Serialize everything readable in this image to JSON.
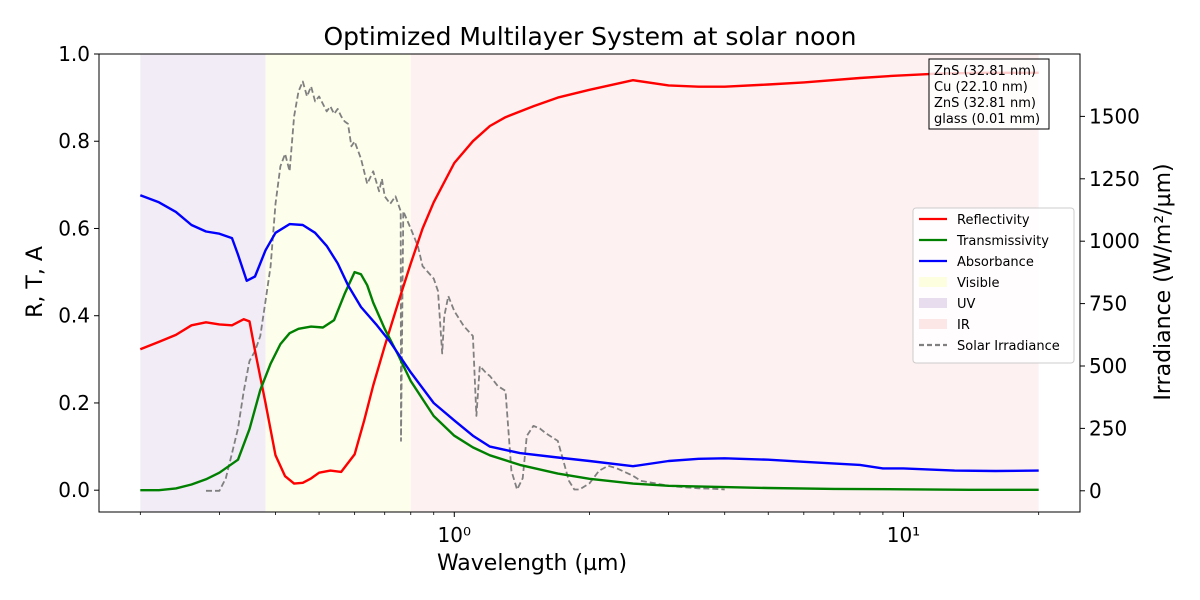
{
  "chart_data": {
    "type": "line",
    "title": "Optimized Multilayer System at solar noon",
    "xlabel": "Wavelength (µm)",
    "ylabel": "R, T, A",
    "y2label": "Irradiance (W/m²/µm)",
    "xscale": "log",
    "xlim": [
      0.2,
      20
    ],
    "ylim": [
      -0.05,
      1.0
    ],
    "y2lim": [
      -85,
      1750
    ],
    "x_ticks": [
      {
        "value": 1,
        "label": "10⁰"
      },
      {
        "value": 10,
        "label": "10¹"
      }
    ],
    "y_ticks": [
      {
        "value": 0.0,
        "label": "0.0"
      },
      {
        "value": 0.2,
        "label": "0.2"
      },
      {
        "value": 0.4,
        "label": "0.4"
      },
      {
        "value": 0.6,
        "label": "0.6"
      },
      {
        "value": 0.8,
        "label": "0.8"
      },
      {
        "value": 1.0,
        "label": "1.0"
      }
    ],
    "y2_ticks": [
      {
        "value": 0,
        "label": "0"
      },
      {
        "value": 250,
        "label": "250"
      },
      {
        "value": 500,
        "label": "500"
      },
      {
        "value": 750,
        "label": "750"
      },
      {
        "value": 1000,
        "label": "1000"
      },
      {
        "value": 1250,
        "label": "1250"
      },
      {
        "value": 1500,
        "label": "1500"
      }
    ],
    "regions": [
      {
        "name": "UV",
        "from": 0.2,
        "to": 0.38,
        "color": "#e8dcef"
      },
      {
        "name": "Visible",
        "from": 0.38,
        "to": 0.8,
        "color": "#fdfddf"
      },
      {
        "name": "IR",
        "from": 0.8,
        "to": 20,
        "color": "#fde6e6"
      }
    ],
    "series": [
      {
        "name": "Reflectivity",
        "color": "#ff0000",
        "axis": "left",
        "x": [
          0.2,
          0.22,
          0.24,
          0.26,
          0.28,
          0.3,
          0.32,
          0.34,
          0.35,
          0.36,
          0.38,
          0.4,
          0.42,
          0.44,
          0.46,
          0.48,
          0.5,
          0.53,
          0.56,
          0.6,
          0.63,
          0.66,
          0.7,
          0.75,
          0.8,
          0.85,
          0.9,
          1.0,
          1.1,
          1.2,
          1.3,
          1.5,
          1.7,
          2.0,
          2.5,
          3.0,
          3.5,
          4.0,
          5.0,
          6.0,
          8.0,
          9.5,
          12.0,
          15.0,
          20.0
        ],
        "y": [
          0.323,
          0.34,
          0.356,
          0.378,
          0.385,
          0.38,
          0.378,
          0.392,
          0.387,
          0.32,
          0.2,
          0.08,
          0.032,
          0.015,
          0.017,
          0.027,
          0.04,
          0.045,
          0.042,
          0.082,
          0.16,
          0.24,
          0.33,
          0.43,
          0.52,
          0.6,
          0.66,
          0.75,
          0.8,
          0.835,
          0.855,
          0.88,
          0.9,
          0.918,
          0.94,
          0.928,
          0.925,
          0.925,
          0.93,
          0.935,
          0.945,
          0.95,
          0.955,
          0.957,
          0.957
        ]
      },
      {
        "name": "Transmissivity",
        "color": "#008000",
        "axis": "left",
        "x": [
          0.2,
          0.22,
          0.24,
          0.26,
          0.28,
          0.3,
          0.33,
          0.35,
          0.37,
          0.39,
          0.41,
          0.43,
          0.45,
          0.48,
          0.51,
          0.54,
          0.57,
          0.6,
          0.62,
          0.64,
          0.66,
          0.7,
          0.75,
          0.8,
          0.9,
          1.0,
          1.1,
          1.2,
          1.4,
          1.7,
          2.0,
          2.5,
          3.0,
          4.0,
          5.0,
          7.0,
          10.0,
          14.0,
          20.0
        ],
        "y": [
          0.0,
          0.0,
          0.004,
          0.013,
          0.025,
          0.04,
          0.07,
          0.14,
          0.23,
          0.29,
          0.335,
          0.36,
          0.37,
          0.375,
          0.373,
          0.39,
          0.45,
          0.5,
          0.495,
          0.47,
          0.43,
          0.37,
          0.31,
          0.25,
          0.17,
          0.125,
          0.098,
          0.08,
          0.058,
          0.038,
          0.026,
          0.015,
          0.01,
          0.007,
          0.005,
          0.003,
          0.002,
          0.001,
          0.001
        ]
      },
      {
        "name": "Absorbance",
        "color": "#0000ff",
        "axis": "left",
        "x": [
          0.2,
          0.22,
          0.24,
          0.26,
          0.28,
          0.3,
          0.32,
          0.33,
          0.345,
          0.36,
          0.38,
          0.4,
          0.43,
          0.46,
          0.49,
          0.52,
          0.55,
          0.58,
          0.62,
          0.67,
          0.72,
          0.8,
          0.9,
          1.0,
          1.1,
          1.2,
          1.4,
          1.7,
          2.0,
          2.5,
          3.0,
          3.5,
          4.0,
          5.0,
          6.0,
          8.0,
          9.0,
          10.0,
          13.0,
          16.0,
          20.0
        ],
        "y": [
          0.676,
          0.66,
          0.638,
          0.608,
          0.593,
          0.588,
          0.578,
          0.54,
          0.48,
          0.49,
          0.55,
          0.59,
          0.61,
          0.608,
          0.59,
          0.56,
          0.52,
          0.47,
          0.42,
          0.38,
          0.34,
          0.27,
          0.2,
          0.16,
          0.125,
          0.1,
          0.085,
          0.075,
          0.067,
          0.055,
          0.067,
          0.072,
          0.073,
          0.07,
          0.065,
          0.058,
          0.05,
          0.05,
          0.045,
          0.044,
          0.045
        ]
      },
      {
        "name": "Solar Irradiance",
        "color": "#808080",
        "axis": "right",
        "dashed": true,
        "x": [
          0.28,
          0.29,
          0.3,
          0.31,
          0.32,
          0.33,
          0.34,
          0.35,
          0.36,
          0.37,
          0.38,
          0.39,
          0.4,
          0.41,
          0.42,
          0.43,
          0.44,
          0.45,
          0.46,
          0.47,
          0.48,
          0.49,
          0.5,
          0.51,
          0.52,
          0.53,
          0.54,
          0.55,
          0.56,
          0.57,
          0.58,
          0.59,
          0.6,
          0.62,
          0.64,
          0.66,
          0.68,
          0.69,
          0.7,
          0.72,
          0.74,
          0.76,
          0.761,
          0.77,
          0.8,
          0.83,
          0.85,
          0.88,
          0.9,
          0.92,
          0.94,
          0.95,
          0.97,
          1.0,
          1.05,
          1.1,
          1.12,
          1.14,
          1.18,
          1.2,
          1.25,
          1.3,
          1.34,
          1.38,
          1.42,
          1.45,
          1.5,
          1.55,
          1.6,
          1.7,
          1.8,
          1.85,
          1.9,
          2.0,
          2.1,
          2.2,
          2.3,
          2.4,
          2.5,
          2.6,
          2.8,
          3.0,
          3.2,
          3.5,
          3.8,
          4.0
        ],
        "y": [
          0,
          0,
          0,
          50,
          150,
          250,
          400,
          520,
          560,
          620,
          760,
          900,
          1150,
          1300,
          1350,
          1280,
          1500,
          1600,
          1640,
          1580,
          1620,
          1560,
          1580,
          1550,
          1520,
          1540,
          1510,
          1530,
          1500,
          1480,
          1470,
          1380,
          1400,
          1330,
          1230,
          1280,
          1200,
          1250,
          1180,
          1150,
          1180,
          1120,
          200,
          1120,
          1050,
          980,
          900,
          870,
          850,
          800,
          550,
          700,
          780,
          720,
          660,
          620,
          300,
          500,
          470,
          460,
          420,
          400,
          80,
          5,
          50,
          220,
          260,
          250,
          230,
          200,
          40,
          5,
          5,
          30,
          80,
          100,
          90,
          75,
          60,
          40,
          30,
          20,
          15,
          10,
          8,
          5
        ]
      }
    ],
    "legend": {
      "placement": "right",
      "entries": [
        {
          "label": "Reflectivity",
          "color": "#ff0000",
          "kind": "line"
        },
        {
          "label": "Transmissivity",
          "color": "#008000",
          "kind": "line"
        },
        {
          "label": "Absorbance",
          "color": "#0000ff",
          "kind": "line"
        },
        {
          "label": "Visible",
          "color": "#fdfddf",
          "kind": "patch"
        },
        {
          "label": "UV",
          "color": "#e8dcef",
          "kind": "patch"
        },
        {
          "label": "IR",
          "color": "#fde6e6",
          "kind": "patch"
        },
        {
          "label": "Solar Irradiance",
          "color": "#808080",
          "kind": "dashed"
        }
      ]
    },
    "annotation": {
      "placement": "top-right",
      "lines": [
        "ZnS (32.81 nm)",
        "Cu (22.10 nm)",
        "ZnS (32.81 nm)",
        "glass (0.01 mm)"
      ]
    }
  }
}
